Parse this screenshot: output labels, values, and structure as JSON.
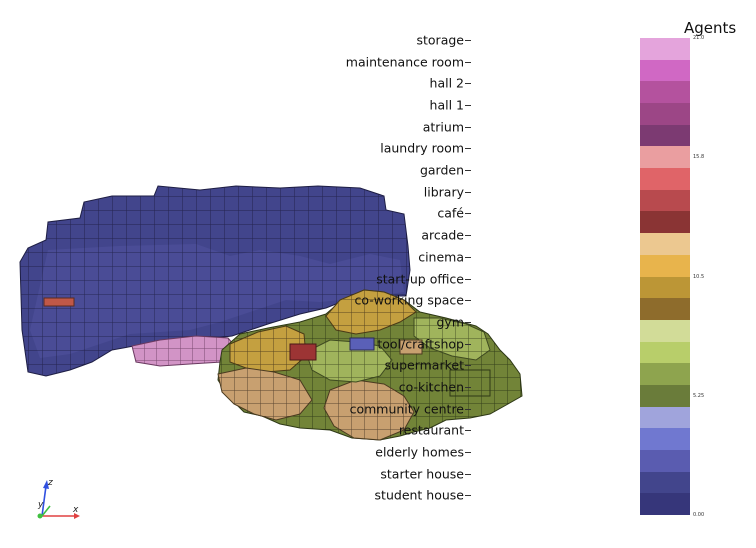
{
  "legend": {
    "title": "Agents",
    "categories": [
      {
        "label": "storage",
        "color": "#e4a4dc"
      },
      {
        "label": "maintenance room",
        "color": "#d068c4"
      },
      {
        "label": "hall 2",
        "color": "#b4529e"
      },
      {
        "label": "hall 1",
        "color": "#9c4686"
      },
      {
        "label": "atrium",
        "color": "#7c3a72"
      },
      {
        "label": "laundry room",
        "color": "#ea9ea0"
      },
      {
        "label": "garden",
        "color": "#e06468"
      },
      {
        "label": "library",
        "color": "#b84a4e"
      },
      {
        "label": "café",
        "color": "#8a3434"
      },
      {
        "label": "arcade",
        "color": "#ecc890"
      },
      {
        "label": "cinema",
        "color": "#e8b44c"
      },
      {
        "label": "start-up office",
        "color": "#bc9636"
      },
      {
        "label": "co-working space",
        "color": "#8e6c2c"
      },
      {
        "label": "gym",
        "color": "#d2dc98"
      },
      {
        "label": "tool/craftshop",
        "color": "#b8ce6a"
      },
      {
        "label": "supermarket",
        "color": "#8ea44e"
      },
      {
        "label": "co-kitchen",
        "color": "#6a7c3a"
      },
      {
        "label": "community centre",
        "color": "#a0a4dc"
      },
      {
        "label": "restaurant",
        "color": "#7078d0"
      },
      {
        "label": "elderly homes",
        "color": "#5a5cb0"
      },
      {
        "label": "starter house",
        "color": "#42458c"
      },
      {
        "label": "student house",
        "color": "#36367a"
      }
    ],
    "bar_ticks": [
      "21.0",
      "15.8",
      "10.5",
      "5.25",
      "0.00"
    ]
  },
  "axes": {
    "x": "x",
    "y": "y",
    "z": "z"
  },
  "colors": {
    "blue_building": "#42458c",
    "blue_building_light": "#5a5cb0",
    "pink": "#d894c4",
    "orange_ochre": "#c8a040",
    "tan": "#c8a070",
    "olive": "#7a8c42",
    "green": "#9aae58",
    "red": "#9c3030"
  }
}
